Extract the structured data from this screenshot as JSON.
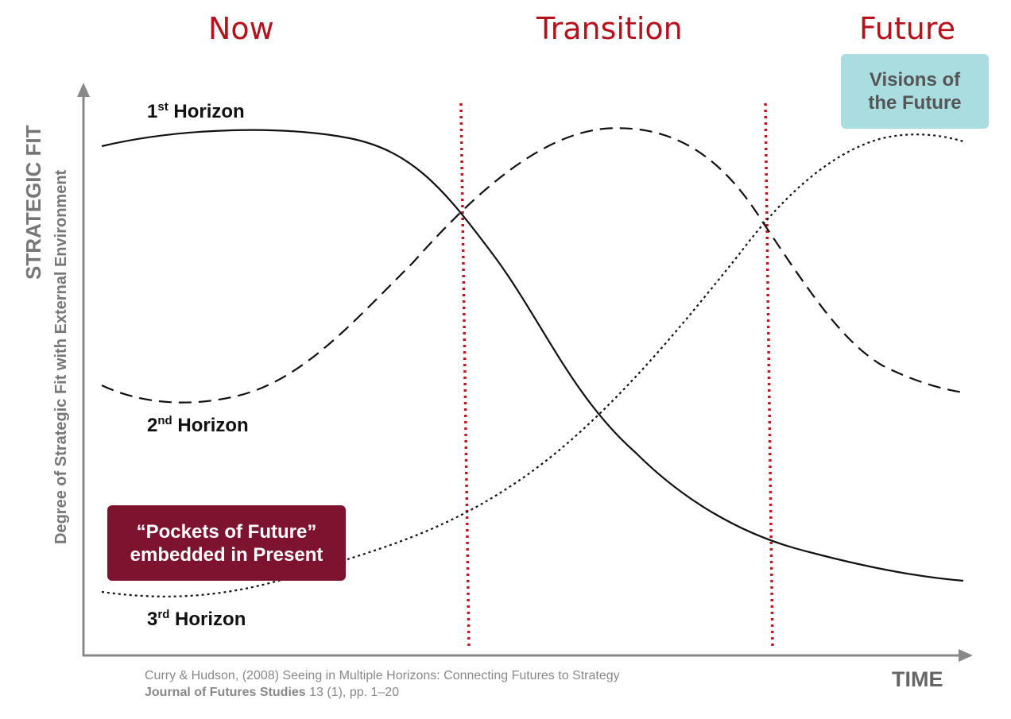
{
  "phases": {
    "now": "Now",
    "transition": "Transition",
    "future": "Future"
  },
  "horizons": {
    "h1": {
      "num": "1",
      "sup": "st",
      "label": "Horizon"
    },
    "h2": {
      "num": "2",
      "sup": "nd",
      "label": "Horizon"
    },
    "h3": {
      "num": "3",
      "sup": "rd",
      "label": "Horizon"
    }
  },
  "callouts": {
    "visions_line1": "Visions of",
    "visions_line2": "the Future",
    "pockets_line1": "“Pockets of Future”",
    "pockets_line2": "embedded in Present"
  },
  "axes": {
    "y_title": "STRATEGIC FIT",
    "y_subtitle": "Degree of Strategic Fit with External Environment",
    "x_title": "TIME"
  },
  "citation": {
    "line1": "Curry & Hudson, (2008) Seeing in Multiple Horizons: Connecting Futures to Strategy",
    "journal": "Journal of Futures Studies",
    "line2_rest": " 13 (1), pp. 1–20"
  },
  "colors": {
    "phase_text": "#b5121b",
    "divider": "#c0141c",
    "visions_bg": "#a9dde0",
    "pockets_bg": "#7e1330"
  }
}
